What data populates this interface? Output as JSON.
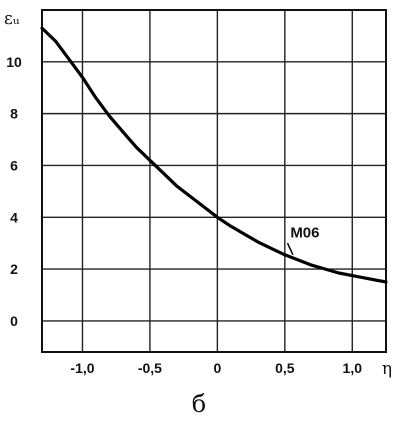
{
  "chart_data": {
    "type": "line",
    "title": "",
    "xlabel": "η",
    "ylabel": "εᵤ",
    "xlim": [
      -1.3,
      1.25
    ],
    "ylim": [
      -1.2,
      12.0
    ],
    "x_ticks": [
      -1.0,
      -0.5,
      0,
      0.5,
      1.0
    ],
    "x_tick_labels": [
      "-1,0",
      "-0,5",
      "0",
      "0,5",
      "1,0"
    ],
    "y_ticks": [
      0,
      2,
      4,
      6,
      8,
      10
    ],
    "y_tick_labels": [
      "0",
      "2",
      "4",
      "6",
      "8",
      "10"
    ],
    "grid": true,
    "series": [
      {
        "name": "М06",
        "x": [
          -1.3,
          -1.2,
          -1.1,
          -1.0,
          -0.9,
          -0.8,
          -0.7,
          -0.6,
          -0.5,
          -0.4,
          -0.3,
          -0.2,
          -0.1,
          0.0,
          0.1,
          0.2,
          0.3,
          0.4,
          0.5,
          0.6,
          0.7,
          0.8,
          0.9,
          1.0,
          1.1,
          1.25
        ],
        "values": [
          11.3,
          10.8,
          10.1,
          9.4,
          8.6,
          7.9,
          7.3,
          6.7,
          6.2,
          5.7,
          5.2,
          4.8,
          4.4,
          4.0,
          3.65,
          3.35,
          3.05,
          2.8,
          2.55,
          2.35,
          2.15,
          2.0,
          1.85,
          1.75,
          1.65,
          1.5
        ]
      }
    ]
  },
  "caption": "б"
}
